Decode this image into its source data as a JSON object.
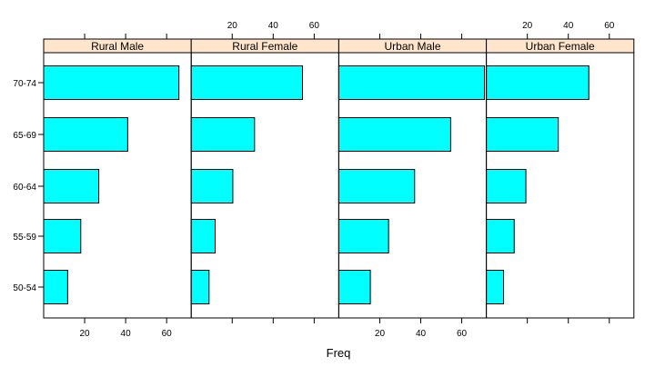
{
  "chart_data": {
    "type": "bar",
    "orientation": "horizontal",
    "layout": "trellis",
    "xlabel": "Freq",
    "ylabel": "",
    "xlim": [
      0,
      72
    ],
    "x_ticks": [
      20,
      40,
      60
    ],
    "x_tick_labels": [
      "20",
      "40",
      "60"
    ],
    "categories": [
      "50-54",
      "55-59",
      "60-64",
      "65-69",
      "70-74"
    ],
    "panels": [
      {
        "name": "Rural Male",
        "values": [
          11.7,
          18.1,
          26.9,
          41.0,
          66.0
        ]
      },
      {
        "name": "Rural Female",
        "values": [
          8.7,
          11.7,
          20.3,
          30.9,
          54.3
        ]
      },
      {
        "name": "Urban Male",
        "values": [
          15.4,
          24.3,
          37.0,
          54.6,
          71.1
        ]
      },
      {
        "name": "Urban Female",
        "values": [
          8.4,
          13.6,
          19.3,
          35.1,
          50.0
        ]
      }
    ],
    "grid": false,
    "legend": "none",
    "colors": {
      "bar": "#00ffff",
      "strip": "#ffe5cc",
      "border": "#000000"
    }
  }
}
